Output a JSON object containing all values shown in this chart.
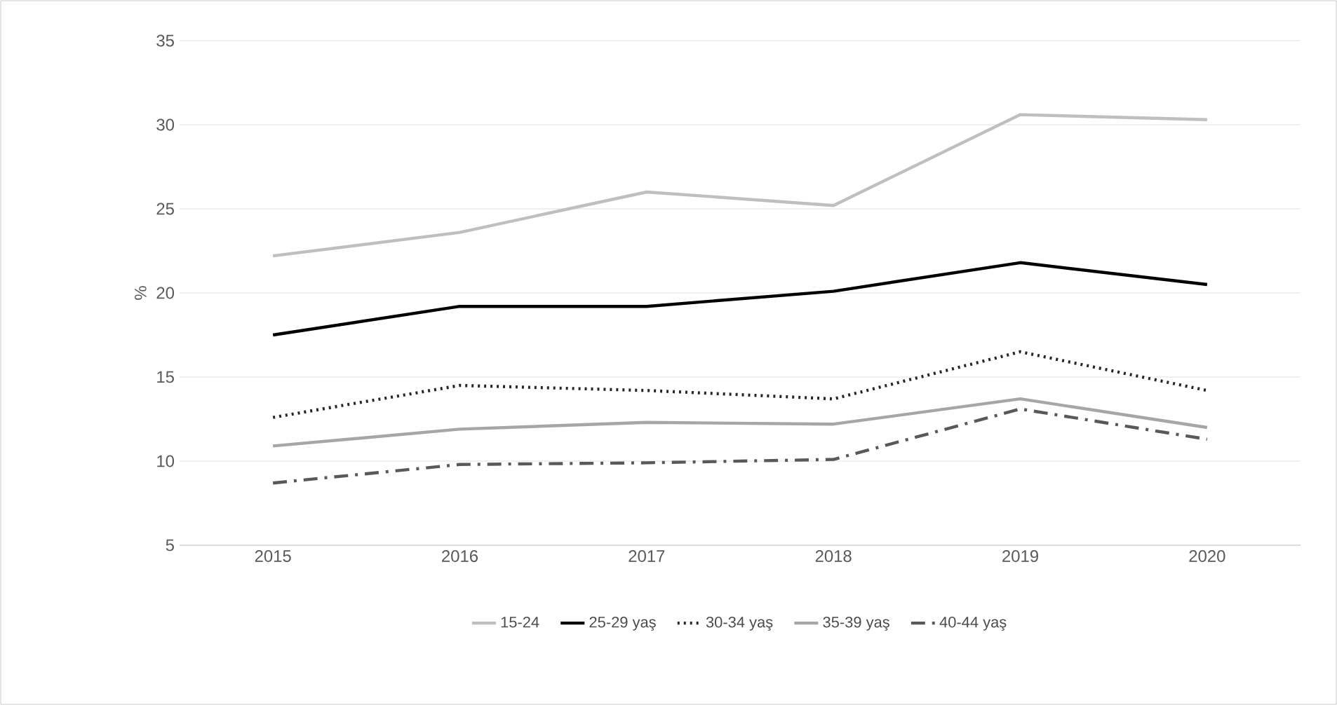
{
  "chart_data": {
    "type": "line",
    "ylabel": "%",
    "categories": [
      "2015",
      "2016",
      "2017",
      "2018",
      "2019",
      "2020"
    ],
    "series": [
      {
        "name": "15-24",
        "color": "#bfbfbf",
        "line_style": "solid",
        "values": [
          22.2,
          23.6,
          26.0,
          25.2,
          30.6,
          30.3
        ]
      },
      {
        "name": "25-29 yaş",
        "color": "#000000",
        "line_style": "solid",
        "values": [
          17.5,
          19.2,
          19.2,
          20.1,
          21.8,
          20.5
        ]
      },
      {
        "name": "30-34 yaş",
        "color": "#262626",
        "line_style": "dotted",
        "values": [
          12.6,
          14.5,
          14.2,
          13.7,
          16.5,
          14.2
        ]
      },
      {
        "name": "35-39 yaş",
        "color": "#a6a6a6",
        "line_style": "solid",
        "values": [
          10.9,
          11.9,
          12.3,
          12.2,
          13.7,
          12.0
        ]
      },
      {
        "name": "40-44 yaş",
        "color": "#595959",
        "line_style": "dashed",
        "values": [
          8.7,
          9.8,
          9.9,
          10.1,
          13.1,
          11.3
        ]
      }
    ],
    "ylim": [
      5,
      35
    ],
    "yticks": [
      5,
      10,
      15,
      20,
      25,
      30,
      35
    ],
    "grid": "y",
    "legend": "bottom",
    "marker": "none"
  }
}
